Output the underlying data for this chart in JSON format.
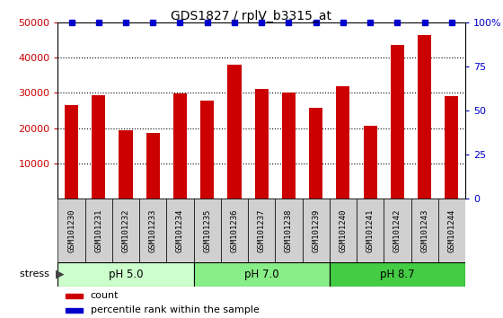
{
  "title": "GDS1827 / rplV_b3315_at",
  "samples": [
    "GSM101230",
    "GSM101231",
    "GSM101232",
    "GSM101233",
    "GSM101234",
    "GSM101235",
    "GSM101236",
    "GSM101237",
    "GSM101238",
    "GSM101239",
    "GSM101240",
    "GSM101241",
    "GSM101242",
    "GSM101243",
    "GSM101244"
  ],
  "counts": [
    26500,
    29300,
    19500,
    18700,
    29800,
    27800,
    38000,
    31000,
    30000,
    25800,
    32000,
    20800,
    43500,
    46500,
    29200
  ],
  "bar_color": "#cc0000",
  "percentile_color": "#0000cc",
  "ylim_left": [
    0,
    50000
  ],
  "ylim_right": [
    0,
    100
  ],
  "yticks_left": [
    10000,
    20000,
    30000,
    40000,
    50000
  ],
  "yticks_right": [
    0,
    25,
    50,
    75,
    100
  ],
  "ytick_labels_right": [
    "0",
    "25",
    "50",
    "75",
    "100%"
  ],
  "groups": [
    {
      "label": "pH 5.0",
      "start": 0,
      "end": 4,
      "color": "#ccffcc"
    },
    {
      "label": "pH 7.0",
      "start": 5,
      "end": 9,
      "color": "#88ee88"
    },
    {
      "label": "pH 8.7",
      "start": 10,
      "end": 14,
      "color": "#44cc44"
    }
  ],
  "tick_color_left": "#cc0000",
  "tick_color_right": "#0000cc",
  "background_color": "#ffffff",
  "bar_width": 0.5,
  "legend_count_label": "count",
  "legend_percentile_label": "percentile rank within the sample"
}
